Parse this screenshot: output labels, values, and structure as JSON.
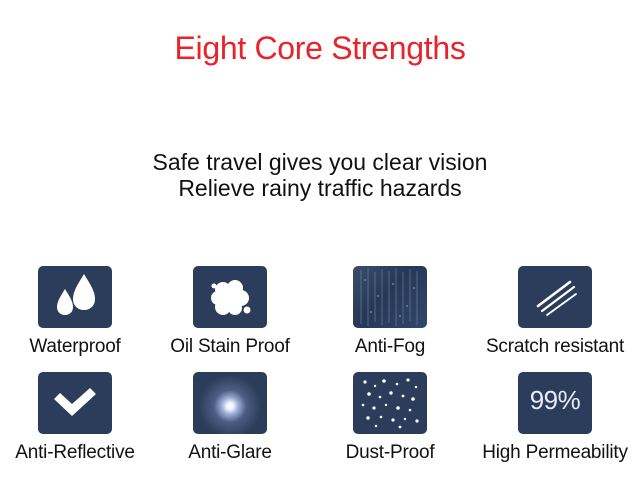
{
  "header": {
    "title": "Eight Core Strengths",
    "title_color": "#e8232a"
  },
  "intro": {
    "line1": "Safe travel gives you clear vision",
    "line2": "Relieve rainy traffic hazards"
  },
  "tile_color": "#2b3d5a",
  "features": [
    {
      "icon": "water-drops-icon",
      "label": "Waterproof"
    },
    {
      "icon": "oil-stain-icon",
      "label": "Oil Stain Proof"
    },
    {
      "icon": "fog-icon",
      "label": "Anti-Fog"
    },
    {
      "icon": "scratch-icon",
      "label": "Scratch resistant"
    },
    {
      "icon": "checkmark-icon",
      "label": "Anti-Reflective"
    },
    {
      "icon": "glare-icon",
      "label": "Anti-Glare"
    },
    {
      "icon": "dust-icon",
      "label": "Dust-Proof"
    },
    {
      "icon": "percent-icon",
      "label": "High Permeability",
      "icon_text": "99%"
    }
  ]
}
